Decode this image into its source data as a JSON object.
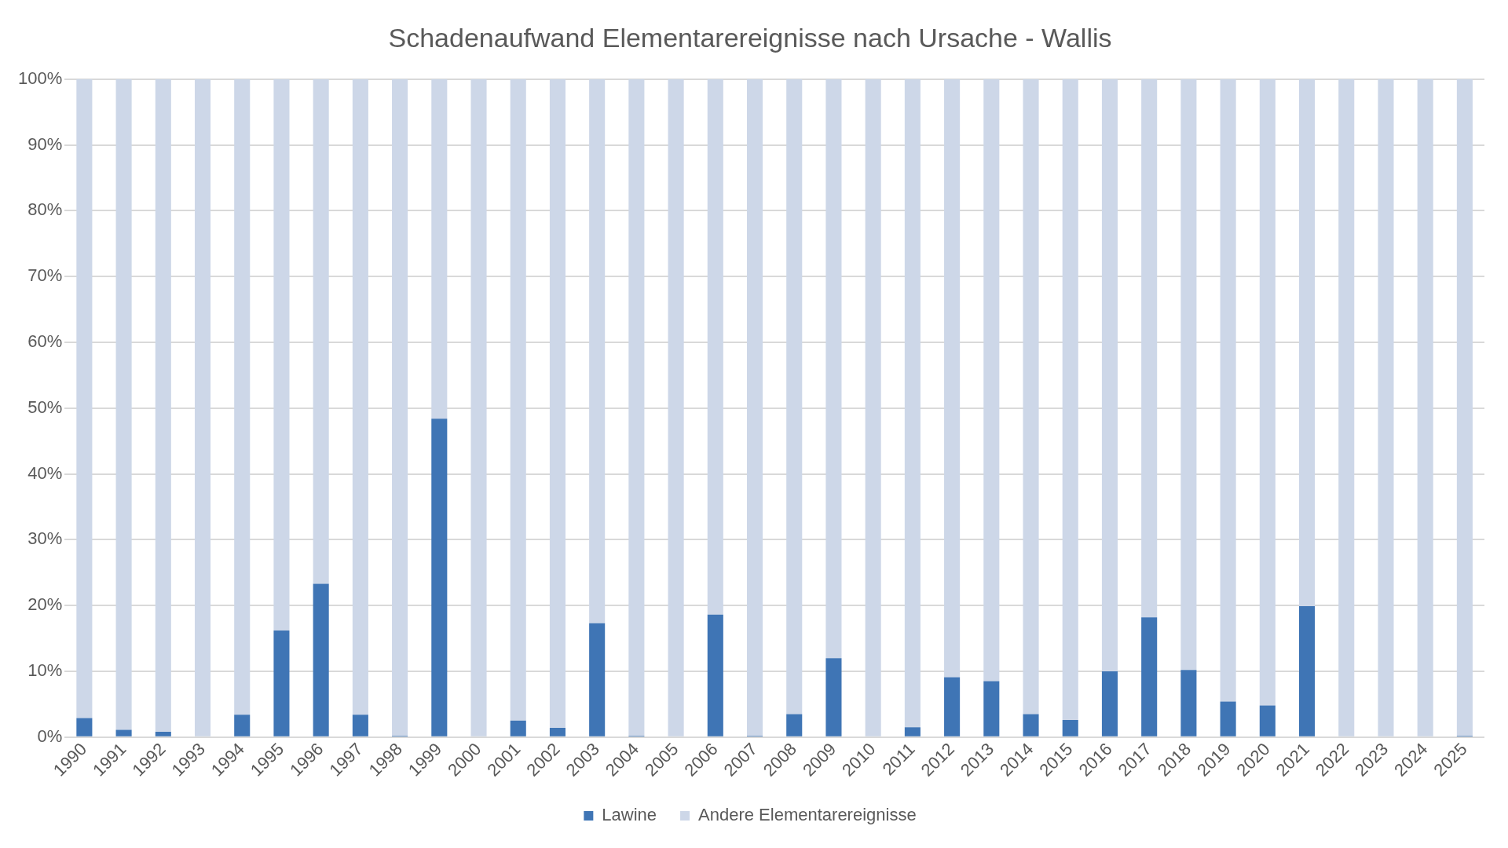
{
  "chart_data": {
    "type": "bar",
    "title": "Schadenaufwand Elementarereignisse nach Ursache - Wallis",
    "stacked": true,
    "categories": [
      "1990",
      "1991",
      "1992",
      "1993",
      "1994",
      "1995",
      "1996",
      "1997",
      "1998",
      "1999",
      "2000",
      "2001",
      "2002",
      "2003",
      "2004",
      "2005",
      "2006",
      "2007",
      "2008",
      "2009",
      "2010",
      "2011",
      "2012",
      "2013",
      "2014",
      "2015",
      "2016",
      "2017",
      "2018",
      "2019",
      "2020",
      "2021",
      "2022",
      "2023",
      "2024",
      "2025"
    ],
    "series": [
      {
        "name": "Lawine",
        "color": "#3f75b5",
        "values": [
          2.9,
          1.1,
          0.8,
          0,
          3.4,
          16.2,
          23.3,
          3.4,
          0.2,
          48.4,
          0,
          2.5,
          1.4,
          17.3,
          0.2,
          0,
          18.6,
          0.2,
          3.5,
          12,
          0,
          1.5,
          9.1,
          8.5,
          3.5,
          2.6,
          10,
          18.2,
          10.2,
          5.4,
          4.8,
          19.9,
          0,
          0,
          0,
          0.2
        ]
      },
      {
        "name": "Andere Elementarereignisse",
        "color": "#cdd7e8",
        "values": [
          97.1,
          98.9,
          99.2,
          100,
          96.6,
          83.8,
          76.7,
          96.6,
          99.8,
          51.6,
          100,
          97.5,
          98.6,
          82.7,
          99.8,
          100,
          81.4,
          99.8,
          96.5,
          88,
          100,
          98.5,
          90.9,
          91.5,
          96.5,
          97.4,
          90,
          81.8,
          89.8,
          94.6,
          95.2,
          80.1,
          100,
          100,
          100,
          99.8
        ]
      }
    ],
    "ylim": [
      0,
      100
    ],
    "yticks": [
      {
        "value": 0,
        "label": "0%"
      },
      {
        "value": 10,
        "label": "10%"
      },
      {
        "value": 20,
        "label": "20%"
      },
      {
        "value": 30,
        "label": "30%"
      },
      {
        "value": 40,
        "label": "40%"
      },
      {
        "value": 50,
        "label": "50%"
      },
      {
        "value": 60,
        "label": "60%"
      },
      {
        "value": 70,
        "label": "70%"
      },
      {
        "value": 80,
        "label": "80%"
      },
      {
        "value": 90,
        "label": "90%"
      },
      {
        "value": 100,
        "label": "100%"
      }
    ],
    "grid": "y",
    "legend": "bottom"
  }
}
